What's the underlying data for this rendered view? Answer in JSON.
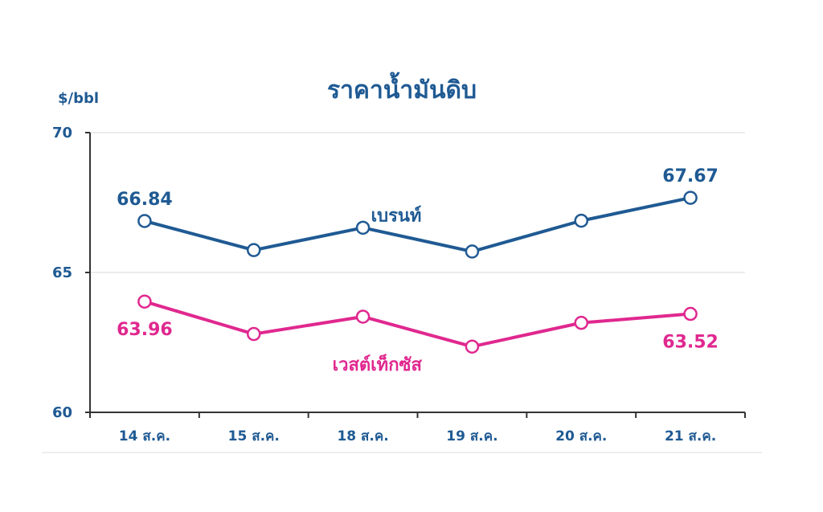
{
  "chart_data": {
    "type": "line",
    "title": "ราคาน้ำมันดิบ",
    "ylabel": "$/bbl",
    "xlabel": "",
    "ylim": [
      60,
      70
    ],
    "yticks": [
      60,
      65,
      70
    ],
    "categories": [
      "14 ส.ค.",
      "15 ส.ค.",
      "18 ส.ค.",
      "19 ส.ค.",
      "20 ส.ค.",
      "21 ส.ค."
    ],
    "grid": true,
    "legend": "inline labels",
    "series": [
      {
        "name": "เบรนท์",
        "color": "#1f5a93",
        "values": [
          66.84,
          65.8,
          66.6,
          65.75,
          66.85,
          67.67
        ],
        "data_labels": [
          {
            "index": 0,
            "text": "66.84"
          },
          {
            "index": 5,
            "text": "67.67"
          }
        ]
      },
      {
        "name": "เวสต์เท็กซัส",
        "color": "#e0288f",
        "values": [
          63.96,
          62.8,
          63.42,
          62.35,
          63.2,
          63.52
        ],
        "data_labels": [
          {
            "index": 0,
            "text": "63.96"
          },
          {
            "index": 5,
            "text": "63.52"
          }
        ]
      }
    ]
  }
}
